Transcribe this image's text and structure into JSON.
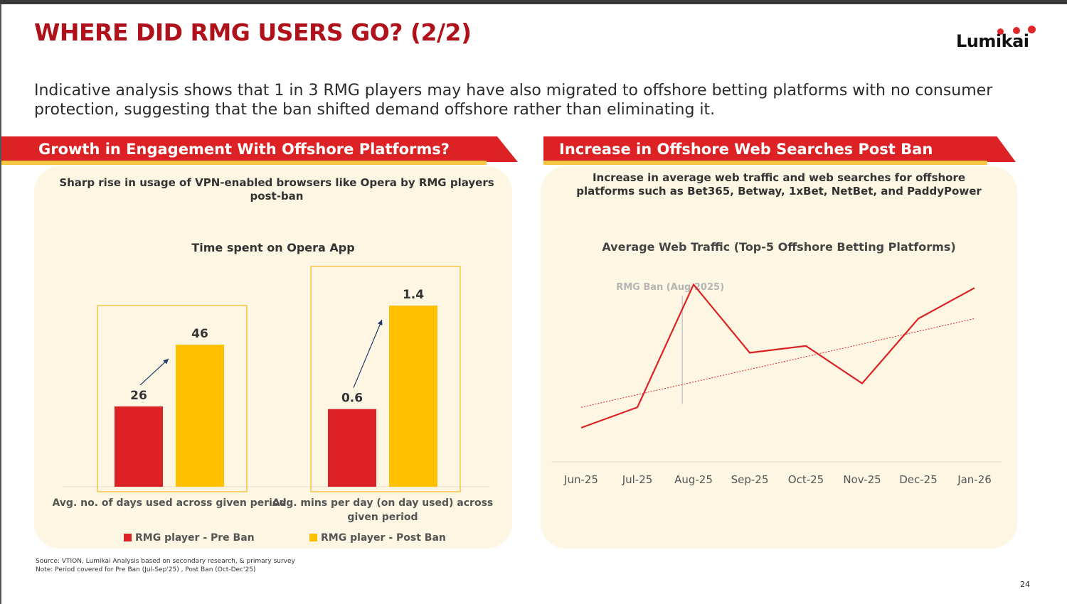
{
  "header": {
    "title": "WHERE DID RMG USERS GO? (2/2)",
    "logo_text": "Lumikai"
  },
  "subtitle": "Indicative analysis shows that 1 in 3 RMG players may have also migrated to offshore betting platforms with no consumer protection, suggesting that the ban shifted demand offshore rather than eliminating it.",
  "left_panel": {
    "ribbon_title": "Growth in Engagement With Offshore Platforms?",
    "subheading": "Sharp rise in usage of VPN-enabled browsers like Opera by RMG players post-ban"
  },
  "right_panel": {
    "ribbon_title": "Increase in Offshore Web Searches Post Ban",
    "subheading_line1": "Increase in average web traffic and web searches for offshore",
    "subheading_line2": "platforms such as Bet365, Betway, 1xBet, NetBet, and PaddyPower"
  },
  "colors": {
    "brand_red": "#dd2226",
    "title_red": "#b0121b",
    "yellow": "#ffc000",
    "panel_bg": "#fdf6e3"
  },
  "chart_data": [
    {
      "type": "bar",
      "title": "Time spent on Opera App",
      "categories": [
        "Avg. no. of days used across given period",
        "Avg. mins per day (on day used) across given period"
      ],
      "series": [
        {
          "name": "RMG player - Pre Ban",
          "color": "#dd2226",
          "values": [
            26,
            0.6
          ]
        },
        {
          "name": "RMG player - Post Ban",
          "color": "#ffc000",
          "values": [
            46,
            1.4
          ]
        }
      ],
      "value_labels": [
        [
          "26",
          "46"
        ],
        [
          "0.6",
          "1.4"
        ]
      ],
      "category_label_lines": [
        [
          "Avg. no. of days used across given period"
        ],
        [
          "Avg. mins per day (on day used) across",
          "given period"
        ]
      ],
      "legend": [
        "RMG player - Pre Ban",
        "RMG player - Post Ban"
      ],
      "note": "each category group drawn on its own scale"
    },
    {
      "type": "line",
      "title": "Average Web Traffic (Top-5 Offshore Betting Platforms)",
      "x": [
        "Jun-25",
        "Jul-25",
        "Aug-25",
        "Sep-25",
        "Oct-25",
        "Nov-25",
        "Dec-25",
        "Jan-26"
      ],
      "values": [
        10,
        16,
        52,
        32,
        34,
        23,
        42,
        51
      ],
      "ylim": [
        0,
        60
      ],
      "trendline": {
        "start": 16,
        "end": 42,
        "style": "dotted"
      },
      "annotation": {
        "label": "RMG Ban (Aug 2025)",
        "x_index": 1.8
      }
    }
  ],
  "footer": {
    "source": "Source: VTION, Lumikai Analysis based on secondary research, & primary survey",
    "note": "Note: Period covered for Pre Ban (Jul-Sep'25) , Post Ban (Oct-Dec'25)",
    "page_number": "24"
  }
}
